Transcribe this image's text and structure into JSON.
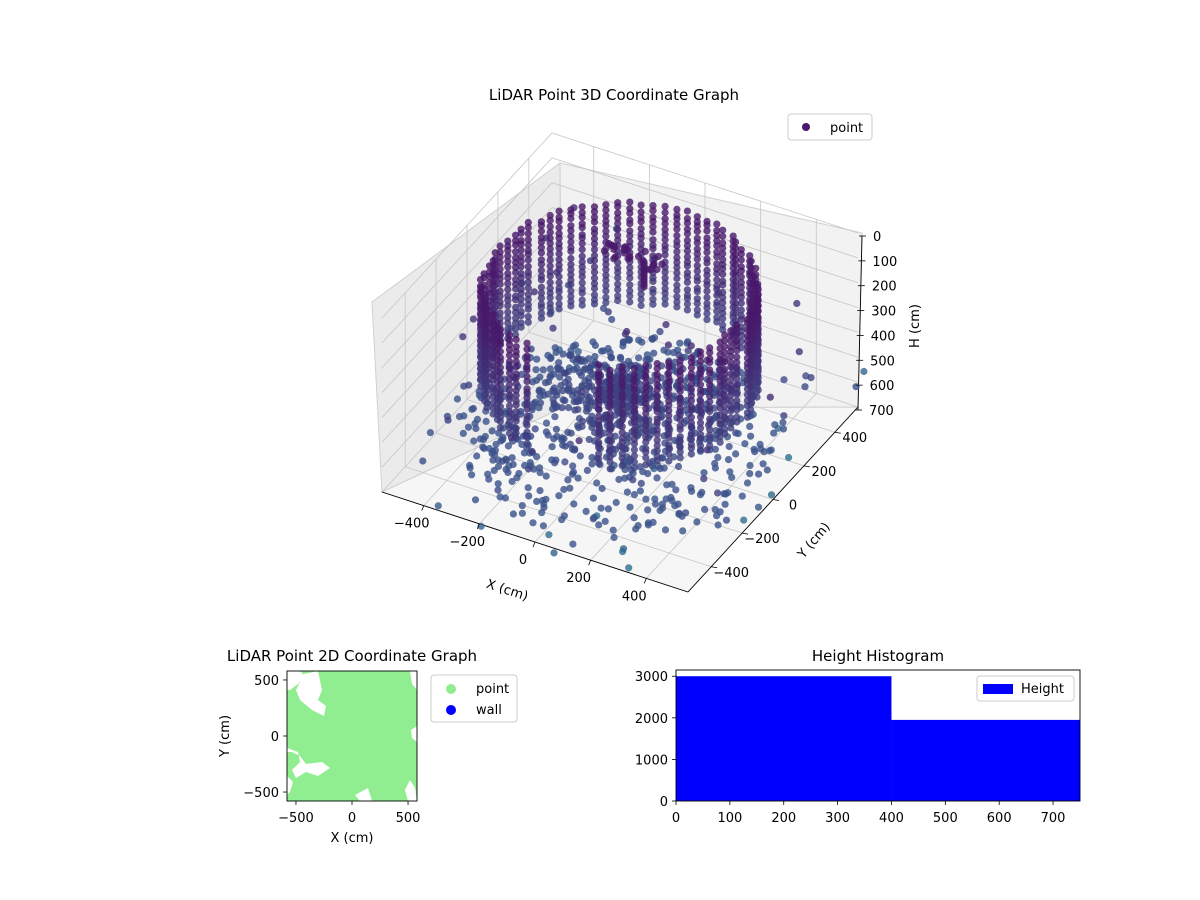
{
  "chart_data": [
    {
      "type": "scatter",
      "projection": "3d",
      "title": "LiDAR Point 3D Coordinate Graph",
      "xlabel": "X (cm)",
      "ylabel": "Y (cm)",
      "zlabel": "H (cm)",
      "xlim": [
        -550,
        550
      ],
      "ylim": [
        -550,
        550
      ],
      "zlim": [
        700,
        0
      ],
      "zinverted": true,
      "xticks": [
        -400,
        -200,
        0,
        200,
        400
      ],
      "yticks": [
        -400,
        -200,
        0,
        200,
        400
      ],
      "zticks": [
        0,
        100,
        200,
        300,
        400,
        500,
        600,
        700
      ],
      "legend": {
        "label": "point",
        "color": "#48186a",
        "placement": "upper-right"
      },
      "colormap": "viridis",
      "grid": true,
      "series": [
        {
          "name": "point",
          "description_values": {
            "wall_ring_radius": 430,
            "wall_height_range": [
              0,
              450
            ],
            "floor_height": 500,
            "sample_points": [
              {
                "x": -430,
                "y": 0,
                "h": 120
              },
              {
                "x": 0,
                "y": 430,
                "h": 60
              },
              {
                "x": 430,
                "y": 0,
                "h": 200
              },
              {
                "x": 0,
                "y": -430,
                "h": 300
              },
              {
                "x": -150,
                "y": 200,
                "h": 40
              },
              {
                "x": 200,
                "y": -300,
                "h": 520
              },
              {
                "x": -300,
                "y": -200,
                "h": 560
              },
              {
                "x": 350,
                "y": 350,
                "h": 640
              }
            ]
          }
        }
      ]
    },
    {
      "type": "scatter",
      "title": "LiDAR Point 2D Coordinate Graph",
      "xlabel": "X (cm)",
      "ylabel": "Y (cm)",
      "xlim": [
        -580,
        580
      ],
      "ylim": [
        -580,
        580
      ],
      "xticks": [
        -500,
        0,
        500
      ],
      "yticks": [
        -500,
        0,
        500
      ],
      "legend": {
        "placement": "outside-right"
      },
      "series": [
        {
          "name": "point",
          "color": "#90ee90"
        },
        {
          "name": "wall",
          "color": "#0000ff"
        }
      ]
    },
    {
      "type": "bar",
      "title": "Height Histogram",
      "legend": {
        "label": "Height",
        "color": "#0000ff",
        "placement": "upper-right"
      },
      "bins": [
        [
          0,
          400
        ],
        [
          400,
          750
        ]
      ],
      "values": [
        3000,
        1950
      ],
      "xlim": [
        0,
        750
      ],
      "ylim": [
        0,
        3150
      ],
      "xticks": [
        0,
        100,
        200,
        300,
        400,
        500,
        600,
        700
      ],
      "yticks": [
        0,
        1000,
        2000,
        3000
      ],
      "series": [
        {
          "name": "Height",
          "values": [
            3000,
            1950
          ]
        }
      ]
    }
  ],
  "colors": {
    "pane": "#f2f2f2",
    "pane_edge": "#cccccc",
    "grid": "#c8c8c8",
    "point_top": "#48186a",
    "point_bottom": "#3b528b",
    "point_far": "#2a788e",
    "point_outlier": "#35b779"
  }
}
